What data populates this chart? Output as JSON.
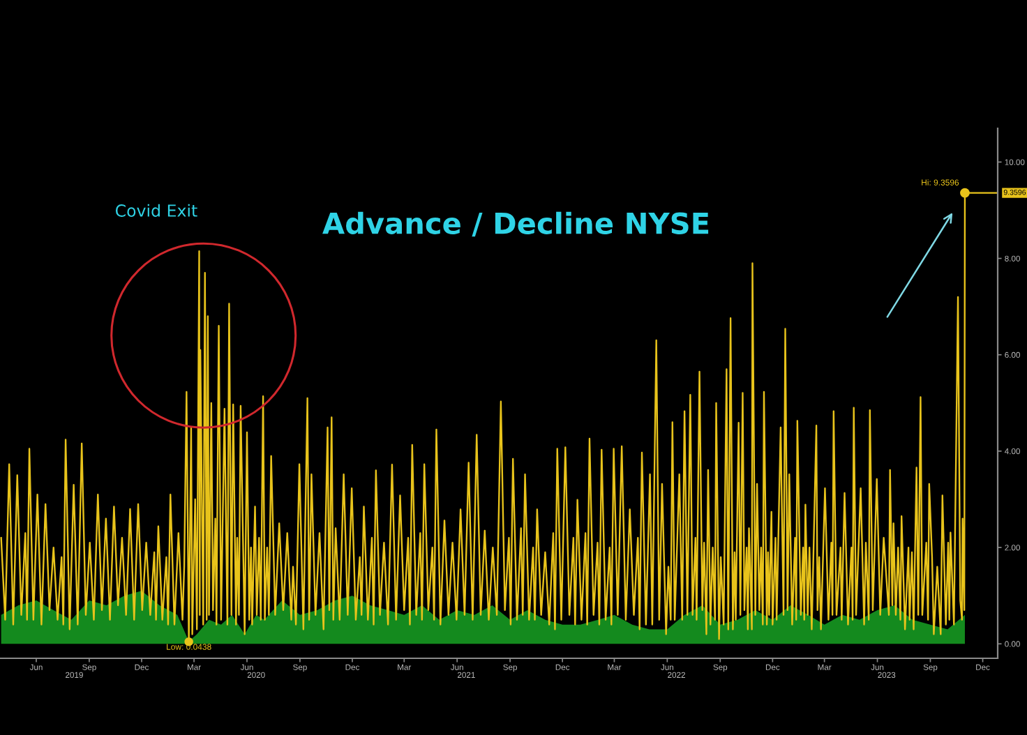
{
  "chart_data": {
    "type": "line",
    "title": "Advance / Decline NYSE",
    "annotations": [
      "Covid Exit",
      {
        "text": "Hi: 9.3596",
        "x": "2023-11-14",
        "y": 9.3596
      },
      {
        "text": "Low: 0.0438",
        "x": "2020-03-06",
        "y": 0.0438
      }
    ],
    "xlim": [
      "2019-04-13",
      "2024-01-10"
    ],
    "xticks": [
      {
        "value": "2019-06-15",
        "label": "Jun"
      },
      {
        "value": "2019-09-15",
        "label": "Sep"
      },
      {
        "value": "2019-12-15",
        "label": "Dec"
      },
      {
        "value": "2020-03-15",
        "label": "Mar"
      },
      {
        "value": "2020-06-15",
        "label": "Jun"
      },
      {
        "value": "2020-09-15",
        "label": "Sep"
      },
      {
        "value": "2020-12-15",
        "label": "Dec"
      },
      {
        "value": "2021-03-15",
        "label": "Mar"
      },
      {
        "value": "2021-06-15",
        "label": "Jun"
      },
      {
        "value": "2021-09-15",
        "label": "Sep"
      },
      {
        "value": "2021-12-15",
        "label": "Dec"
      },
      {
        "value": "2022-03-15",
        "label": "Mar"
      },
      {
        "value": "2022-06-15",
        "label": "Jun"
      },
      {
        "value": "2022-09-15",
        "label": "Sep"
      },
      {
        "value": "2022-12-15",
        "label": "Dec"
      },
      {
        "value": "2023-03-15",
        "label": "Mar"
      },
      {
        "value": "2023-06-15",
        "label": "Jun"
      },
      {
        "value": "2023-09-15",
        "label": "Sep"
      },
      {
        "value": "2023-12-15",
        "label": "Dec"
      }
    ],
    "x2lim": [
      "2019-04-13",
      "2024-01-10"
    ],
    "x2ticks": [
      {
        "value": "2019-08-20",
        "label": "2019"
      },
      {
        "value": "2020-07-01",
        "label": "2020"
      },
      {
        "value": "2021-07-01",
        "label": "2021"
      },
      {
        "value": "2022-07-01",
        "label": "2022"
      },
      {
        "value": "2023-07-01",
        "label": "2023"
      }
    ],
    "ylim": [
      -0.3,
      10.7
    ],
    "yticks": [
      {
        "value": 0,
        "label": "0.00"
      },
      {
        "value": 2,
        "label": "2.00"
      },
      {
        "value": 4,
        "label": "4.00"
      },
      {
        "value": 6,
        "label": "6.00"
      },
      {
        "value": 8,
        "label": "8.00"
      },
      {
        "value": 10,
        "label": "10.00"
      }
    ],
    "ref_lines": [
      {
        "axis": "y",
        "value": 9.3596,
        "label": "9.3596",
        "color": "#e8c31b"
      }
    ],
    "series": [
      {
        "type": "area",
        "color": "#148a1e",
        "x": [
          "2019-04-15",
          "2019-05-15",
          "2019-06-15",
          "2019-07-15",
          "2019-08-15",
          "2019-09-15",
          "2019-10-15",
          "2019-11-15",
          "2019-12-15",
          "2020-01-15",
          "2020-02-15",
          "2020-03-06",
          "2020-03-20",
          "2020-04-10",
          "2020-05-01",
          "2020-05-20",
          "2020-06-11",
          "2020-07-01",
          "2020-07-15",
          "2020-08-15",
          "2020-09-15",
          "2020-10-15",
          "2020-11-15",
          "2020-12-15",
          "2021-01-15",
          "2021-02-15",
          "2021-03-15",
          "2021-04-15",
          "2021-05-15",
          "2021-06-15",
          "2021-07-15",
          "2021-08-15",
          "2021-09-15",
          "2021-10-15",
          "2021-11-15",
          "2021-12-15",
          "2022-01-15",
          "2022-02-15",
          "2022-03-15",
          "2022-04-15",
          "2022-05-15",
          "2022-06-15",
          "2022-07-15",
          "2022-08-15",
          "2022-09-15",
          "2022-10-15",
          "2022-11-15",
          "2022-12-15",
          "2023-01-15",
          "2023-02-15",
          "2023-03-15",
          "2023-04-15",
          "2023-05-15",
          "2023-06-15",
          "2023-07-15",
          "2023-08-15",
          "2023-09-15",
          "2023-10-15",
          "2023-11-14"
        ],
        "values": [
          0.6,
          0.8,
          0.9,
          0.7,
          0.5,
          0.9,
          0.8,
          1.0,
          1.1,
          0.8,
          0.6,
          0.05,
          0.2,
          0.5,
          0.4,
          0.6,
          0.2,
          0.6,
          0.5,
          0.9,
          0.6,
          0.7,
          0.9,
          1.0,
          0.8,
          0.7,
          0.6,
          0.8,
          0.5,
          0.7,
          0.6,
          0.8,
          0.5,
          0.7,
          0.5,
          0.4,
          0.4,
          0.5,
          0.6,
          0.4,
          0.3,
          0.3,
          0.6,
          0.8,
          0.4,
          0.5,
          0.7,
          0.5,
          0.8,
          0.6,
          0.4,
          0.6,
          0.5,
          0.7,
          0.8,
          0.5,
          0.4,
          0.3,
          0.6
        ]
      },
      {
        "color": "#e8c31b",
        "x": [
          "2019-04-15",
          "2019-04-22",
          "2019-04-29",
          "2019-05-06",
          "2019-05-13",
          "2019-05-20",
          "2019-05-27",
          "2019-05-30",
          "2019-06-03",
          "2019-06-10",
          "2019-06-17",
          "2019-06-24",
          "2019-07-01",
          "2019-07-08",
          "2019-07-15",
          "2019-07-22",
          "2019-07-29",
          "2019-08-01",
          "2019-08-05",
          "2019-08-12",
          "2019-08-19",
          "2019-08-26",
          "2019-09-02",
          "2019-09-09",
          "2019-09-16",
          "2019-09-23",
          "2019-09-30",
          "2019-10-07",
          "2019-10-14",
          "2019-10-21",
          "2019-10-28",
          "2019-11-04",
          "2019-11-11",
          "2019-11-18",
          "2019-11-25",
          "2019-12-02",
          "2019-12-09",
          "2019-12-16",
          "2019-12-23",
          "2019-12-30",
          "2020-01-06",
          "2020-01-09",
          "2020-01-13",
          "2020-01-20",
          "2020-01-27",
          "2020-01-30",
          "2020-02-03",
          "2020-02-10",
          "2020-02-17",
          "2020-02-24",
          "2020-02-27",
          "2020-03-02",
          "2020-03-06",
          "2020-03-10",
          "2020-03-12",
          "2020-03-17",
          "2020-03-20",
          "2020-03-24",
          "2020-03-25",
          "2020-03-26",
          "2020-03-31",
          "2020-04-03",
          "2020-04-06",
          "2020-04-08",
          "2020-04-10",
          "2020-04-14",
          "2020-04-17",
          "2020-04-21",
          "2020-04-23",
          "2020-04-27",
          "2020-05-01",
          "2020-05-07",
          "2020-05-12",
          "2020-05-15",
          "2020-05-19",
          "2020-05-22",
          "2020-05-27",
          "2020-05-29",
          "2020-06-01",
          "2020-06-04",
          "2020-06-11",
          "2020-06-15",
          "2020-06-19",
          "2020-06-22",
          "2020-06-24",
          "2020-06-29",
          "2020-07-02",
          "2020-07-06",
          "2020-07-09",
          "2020-07-13",
          "2020-07-16",
          "2020-07-20",
          "2020-07-23",
          "2020-07-27",
          "2020-08-03",
          "2020-08-10",
          "2020-08-17",
          "2020-08-24",
          "2020-08-31",
          "2020-09-03",
          "2020-09-08",
          "2020-09-14",
          "2020-09-21",
          "2020-09-28",
          "2020-10-01",
          "2020-10-05",
          "2020-10-12",
          "2020-10-19",
          "2020-10-26",
          "2020-11-02",
          "2020-11-05",
          "2020-11-09",
          "2020-11-12",
          "2020-11-16",
          "2020-11-23",
          "2020-11-30",
          "2020-12-07",
          "2020-12-14",
          "2020-12-21",
          "2020-12-28",
          "2020-12-31",
          "2021-01-04",
          "2021-01-11",
          "2021-01-18",
          "2021-01-21",
          "2021-01-25",
          "2021-02-01",
          "2021-02-08",
          "2021-02-15",
          "2021-02-22",
          "2021-03-01",
          "2021-03-08",
          "2021-03-15",
          "2021-03-22",
          "2021-03-25",
          "2021-03-29",
          "2021-04-05",
          "2021-04-12",
          "2021-04-15",
          "2021-04-19",
          "2021-04-26",
          "2021-05-03",
          "2021-05-06",
          "2021-05-10",
          "2021-05-17",
          "2021-05-24",
          "2021-05-31",
          "2021-06-07",
          "2021-06-14",
          "2021-06-21",
          "2021-06-28",
          "2021-07-05",
          "2021-07-12",
          "2021-07-19",
          "2021-07-26",
          "2021-08-02",
          "2021-08-09",
          "2021-08-16",
          "2021-08-23",
          "2021-08-30",
          "2021-09-06",
          "2021-09-13",
          "2021-09-16",
          "2021-09-20",
          "2021-09-27",
          "2021-10-04",
          "2021-10-07",
          "2021-10-11",
          "2021-10-18",
          "2021-10-25",
          "2021-10-28",
          "2021-11-01",
          "2021-11-08",
          "2021-11-15",
          "2021-11-22",
          "2021-11-29",
          "2021-12-02",
          "2021-12-06",
          "2021-12-13",
          "2021-12-20",
          "2021-12-27",
          "2022-01-03",
          "2022-01-06",
          "2022-01-10",
          "2022-01-17",
          "2022-01-24",
          "2022-01-27",
          "2022-01-31",
          "2022-02-07",
          "2022-02-14",
          "2022-02-17",
          "2022-02-21",
          "2022-02-28",
          "2022-03-07",
          "2022-03-10",
          "2022-03-14",
          "2022-03-21",
          "2022-03-28",
          "2022-04-04",
          "2022-04-11",
          "2022-04-18",
          "2022-04-25",
          "2022-04-28",
          "2022-05-02",
          "2022-05-09",
          "2022-05-16",
          "2022-05-20",
          "2022-05-27",
          "2022-06-01",
          "2022-06-06",
          "2022-06-13",
          "2022-06-17",
          "2022-06-21",
          "2022-06-24",
          "2022-06-28",
          "2022-07-06",
          "2022-07-11",
          "2022-07-15",
          "2022-07-20",
          "2022-07-25",
          "2022-07-29",
          "2022-08-03",
          "2022-08-05",
          "2022-08-10",
          "2022-08-15",
          "2022-08-18",
          "2022-08-22",
          "2022-08-25",
          "2022-08-29",
          "2022-09-02",
          "2022-09-06",
          "2022-09-08",
          "2022-09-13",
          "2022-09-16",
          "2022-09-21",
          "2022-09-26",
          "2022-09-29",
          "2022-10-03",
          "2022-10-07",
          "2022-10-10",
          "2022-10-12",
          "2022-10-17",
          "2022-10-20",
          "2022-10-24",
          "2022-10-27",
          "2022-10-31",
          "2022-11-02",
          "2022-11-04",
          "2022-11-09",
          "2022-11-10",
          "2022-11-15",
          "2022-11-18",
          "2022-11-22",
          "2022-11-25",
          "2022-11-28",
          "2022-11-30",
          "2022-12-05",
          "2022-12-07",
          "2022-12-09",
          "2022-12-13",
          "2022-12-15",
          "2022-12-20",
          "2022-12-22",
          "2022-12-29",
          "2023-01-03",
          "2023-01-06",
          "2023-01-10",
          "2023-01-13",
          "2023-01-18",
          "2023-01-23",
          "2023-01-25",
          "2023-01-27",
          "2023-02-02",
          "2023-02-06",
          "2023-02-08",
          "2023-02-10",
          "2023-02-14",
          "2023-02-17",
          "2023-02-21",
          "2023-03-01",
          "2023-03-03",
          "2023-03-06",
          "2023-03-09",
          "2023-03-16",
          "2023-03-22",
          "2023-03-27",
          "2023-03-29",
          "2023-03-31",
          "2023-04-05",
          "2023-04-12",
          "2023-04-14",
          "2023-04-19",
          "2023-04-25",
          "2023-05-01",
          "2023-05-03",
          "2023-05-05",
          "2023-05-09",
          "2023-05-17",
          "2023-05-23",
          "2023-05-26",
          "2023-05-31",
          "2023-06-02",
          "2023-06-07",
          "2023-06-14",
          "2023-06-20",
          "2023-06-26",
          "2023-07-05",
          "2023-07-07",
          "2023-07-11",
          "2023-07-13",
          "2023-07-17",
          "2023-07-21",
          "2023-07-25",
          "2023-07-27",
          "2023-08-02",
          "2023-08-08",
          "2023-08-10",
          "2023-08-14",
          "2023-08-17",
          "2023-08-22",
          "2023-08-25",
          "2023-08-29",
          "2023-09-01",
          "2023-09-08",
          "2023-09-11",
          "2023-09-13",
          "2023-09-18",
          "2023-09-21",
          "2023-09-27",
          "2023-10-03",
          "2023-10-06",
          "2023-10-12",
          "2023-10-16",
          "2023-10-18",
          "2023-10-20",
          "2023-10-26",
          "2023-11-02",
          "2023-11-06",
          "2023-11-09",
          "2023-11-10",
          "2023-11-13",
          "2023-11-14"
        ],
        "values": [
          2.2,
          0.5,
          3.73,
          0.4,
          3.5,
          0.6,
          2.3,
          0.5,
          4.05,
          0.5,
          3.1,
          0.4,
          2.9,
          0.7,
          2.0,
          0.5,
          1.8,
          0.4,
          4.24,
          0.3,
          3.3,
          0.4,
          4.16,
          0.6,
          2.1,
          0.5,
          3.1,
          0.7,
          2.6,
          0.5,
          2.85,
          0.8,
          2.2,
          0.6,
          2.8,
          0.5,
          2.9,
          0.7,
          2.1,
          0.6,
          1.9,
          0.5,
          2.44,
          0.5,
          1.8,
          0.4,
          3.1,
          0.4,
          2.3,
          0.5,
          1.6,
          5.23,
          0.0438,
          4.48,
          0.2,
          3.0,
          0.3,
          8.15,
          0.6,
          6.1,
          0.4,
          7.7,
          0.5,
          6.8,
          0.6,
          5.0,
          0.7,
          2.6,
          0.4,
          6.6,
          0.5,
          4.88,
          0.4,
          7.06,
          0.6,
          4.97,
          0.4,
          2.2,
          0.6,
          4.94,
          0.2,
          4.39,
          0.5,
          2.0,
          0.4,
          2.85,
          0.6,
          2.2,
          0.5,
          5.14,
          0.5,
          2.0,
          0.6,
          3.9,
          0.6,
          2.5,
          0.7,
          2.3,
          0.5,
          1.6,
          0.4,
          3.73,
          0.3,
          5.1,
          0.5,
          3.52,
          0.6,
          2.3,
          0.3,
          4.49,
          0.7,
          4.7,
          0.5,
          2.4,
          0.5,
          3.52,
          0.6,
          3.23,
          0.5,
          1.8,
          0.6,
          2.85,
          0.5,
          2.2,
          0.4,
          3.6,
          0.6,
          2.1,
          0.4,
          3.72,
          0.5,
          3.08,
          0.7,
          2.2,
          0.4,
          4.13,
          0.6,
          2.3,
          0.5,
          3.73,
          0.7,
          2.0,
          0.5,
          4.45,
          0.4,
          2.56,
          0.6,
          2.1,
          0.5,
          2.79,
          0.6,
          3.76,
          0.5,
          4.34,
          0.6,
          2.35,
          0.5,
          2.0,
          0.6,
          5.03,
          0.7,
          2.2,
          0.4,
          3.84,
          0.5,
          2.4,
          0.6,
          3.52,
          0.5,
          2.0,
          0.5,
          2.79,
          0.6,
          1.9,
          0.4,
          2.3,
          0.3,
          4.05,
          0.5,
          4.08,
          0.6,
          2.2,
          0.4,
          2.99,
          0.5,
          2.3,
          0.4,
          4.26,
          0.6,
          2.1,
          0.4,
          4.03,
          0.5,
          2.0,
          0.4,
          4.05,
          0.6,
          4.1,
          0.5,
          2.79,
          0.6,
          2.2,
          0.3,
          3.97,
          0.4,
          3.52,
          0.4,
          6.3,
          0.5,
          3.32,
          0.2,
          1.6,
          0.5,
          4.6,
          0.5,
          3.52,
          0.5,
          4.83,
          0.6,
          5.17,
          0.6,
          2.2,
          0.5,
          5.65,
          0.7,
          2.1,
          0.2,
          3.61,
          0.4,
          2.0,
          0.5,
          5.0,
          0.1,
          1.8,
          0.4,
          5.7,
          0.3,
          6.76,
          0.3,
          1.9,
          0.5,
          4.59,
          0.6,
          5.21,
          0.7,
          2.0,
          0.3,
          2.4,
          0.3,
          7.9,
          0.6,
          3.32,
          0.7,
          2.0,
          0.4,
          5.23,
          0.4,
          1.9,
          0.6,
          2.74,
          0.4,
          2.2,
          0.5,
          4.49,
          0.6,
          6.54,
          0.7,
          3.52,
          0.4,
          2.2,
          0.5,
          4.63,
          0.6,
          2.0,
          0.5,
          2.89,
          0.6,
          2.0,
          0.3,
          4.53,
          0.7,
          1.8,
          0.3,
          3.23,
          0.5,
          2.1,
          0.6,
          4.83,
          0.6,
          2.0,
          0.5,
          3.13,
          0.4,
          2.0,
          0.5,
          4.9,
          0.6,
          3.23,
          0.4,
          2.1,
          0.5,
          4.85,
          0.7,
          3.42,
          0.6,
          2.2,
          0.6,
          3.61,
          0.8,
          2.5,
          0.6,
          2.0,
          0.5,
          2.65,
          0.3,
          2.0,
          0.5,
          1.9,
          0.3,
          3.66,
          0.6,
          5.12,
          0.6,
          2.1,
          0.5,
          3.32,
          1.8,
          0.2,
          1.6,
          0.2,
          3.08,
          0.4,
          2.1,
          0.5,
          2.31,
          0.4,
          7.2,
          0.9,
          0.5,
          2.6,
          0.7,
          9.3596
        ]
      }
    ]
  }
}
